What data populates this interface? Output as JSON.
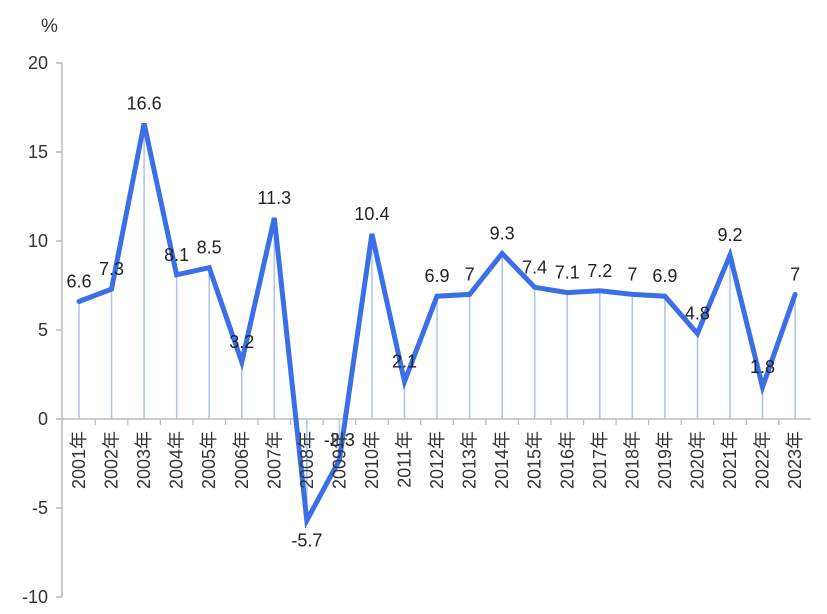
{
  "chart_data": {
    "type": "line",
    "title": "",
    "xlabel": "",
    "ylabel": "",
    "unit": "%",
    "ylim": [
      -10,
      20
    ],
    "yticks": [
      "20",
      "15",
      "10",
      "5",
      "0",
      "-5",
      "-10"
    ],
    "grid": false,
    "legend": "none",
    "line_color": "#3b6fe8",
    "drop_line_color": "#a9c4f0",
    "categories": [
      "2001年",
      "2002年",
      "2003年",
      "2004年",
      "2005年",
      "2006年",
      "2007年",
      "2008年",
      "2009年",
      "2010年",
      "2011年",
      "2012年",
      "2013年",
      "2014年",
      "2015年",
      "2016年",
      "2017年",
      "2018年",
      "2019年",
      "2020年",
      "2021年",
      "2022年",
      "2023年"
    ],
    "series": [
      {
        "values": [
          6.6,
          7.3,
          16.6,
          8.1,
          8.5,
          3.2,
          11.3,
          -5.7,
          -2.3,
          10.4,
          2.1,
          6.9,
          7,
          9.3,
          7.4,
          7.1,
          7.2,
          7,
          6.9,
          4.8,
          9.2,
          1.8,
          7
        ],
        "labels": [
          "6.6",
          "7.3",
          "16.6",
          "8.1",
          "8.5",
          "3.2",
          "11.3",
          "-5.7",
          "-2.3",
          "10.4",
          "2.1",
          "6.9",
          "7",
          "9.3",
          "7.4",
          "7.1",
          "7.2",
          "7",
          "6.9",
          "4.8",
          "9.2",
          "1.8",
          "7"
        ]
      }
    ]
  }
}
